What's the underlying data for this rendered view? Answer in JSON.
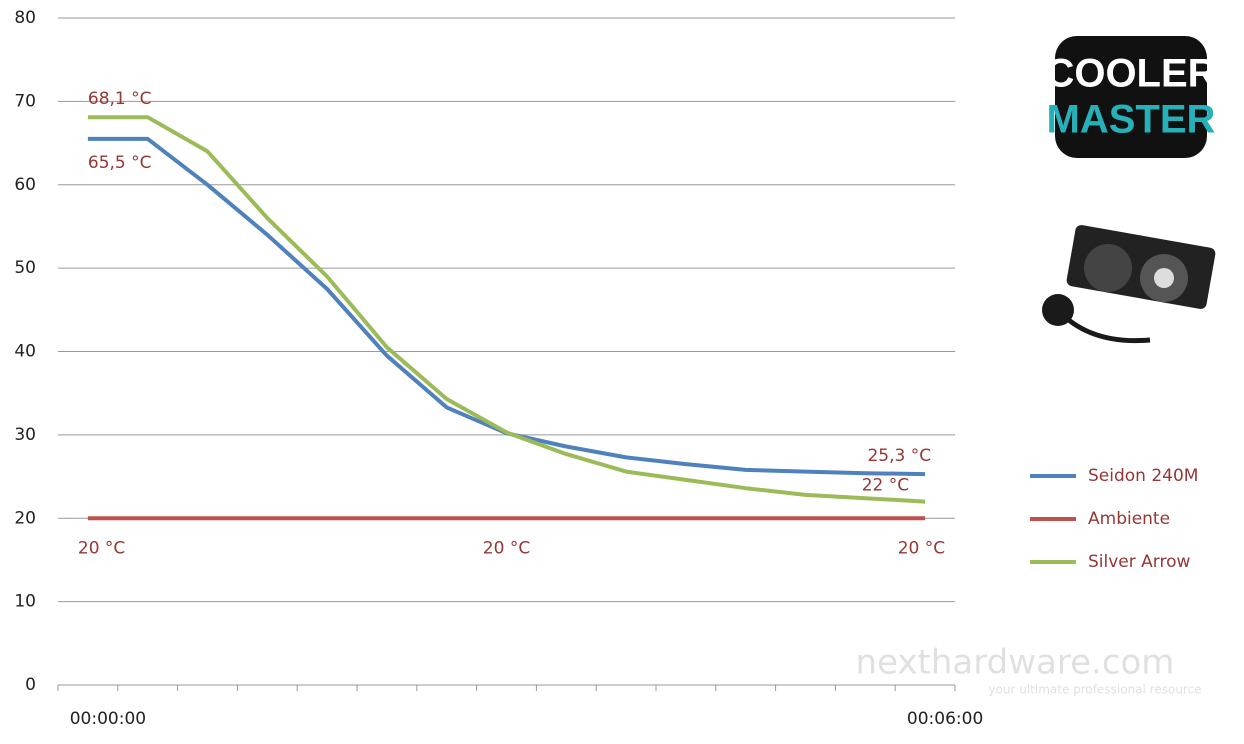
{
  "chart_data": {
    "type": "line",
    "categories": [
      "00:00:00",
      null,
      null,
      null,
      null,
      null,
      null,
      null,
      null,
      null,
      null,
      null,
      null,
      null,
      "00:06:00"
    ],
    "series": [
      {
        "name": "Seidon 240M",
        "color": "#4f81bd",
        "values": [
          65.5,
          65.5,
          60,
          54,
          47.5,
          39.5,
          33.3,
          30.2,
          28.6,
          27.3,
          26.5,
          25.8,
          25.6,
          25.4,
          25.3
        ],
        "value_labels": [
          "65,5 °C",
          null,
          null,
          null,
          null,
          null,
          null,
          null,
          null,
          null,
          null,
          null,
          null,
          null,
          "25,3 °C"
        ]
      },
      {
        "name": "Ambiente",
        "color": "#c0504d",
        "values": [
          20,
          20,
          20,
          20,
          20,
          20,
          20,
          20,
          20,
          20,
          20,
          20,
          20,
          20,
          20
        ],
        "value_labels": [
          "20 °C",
          null,
          null,
          null,
          null,
          null,
          null,
          "20 °C",
          null,
          null,
          null,
          null,
          null,
          null,
          "20 °C"
        ]
      },
      {
        "name": "Silver Arrow",
        "color": "#9bbb59",
        "values": [
          68.1,
          68.1,
          64,
          56,
          49,
          40.5,
          34.3,
          30.3,
          27.7,
          25.6,
          24.6,
          23.6,
          22.8,
          22.4,
          22
        ],
        "value_labels": [
          "68,1 °C",
          null,
          null,
          null,
          null,
          null,
          null,
          null,
          null,
          null,
          null,
          null,
          null,
          null,
          "22 °C"
        ]
      }
    ],
    "ylim": [
      0,
      80
    ],
    "yticks": [
      0,
      10,
      20,
      30,
      40,
      50,
      60,
      70,
      80
    ],
    "grid": true,
    "legend": "right"
  },
  "logo": {
    "lines": [
      "COOLER",
      "MASTER"
    ]
  },
  "watermark": {
    "site": "nexthardware.com",
    "tagline": "your ultimate professional resource"
  }
}
